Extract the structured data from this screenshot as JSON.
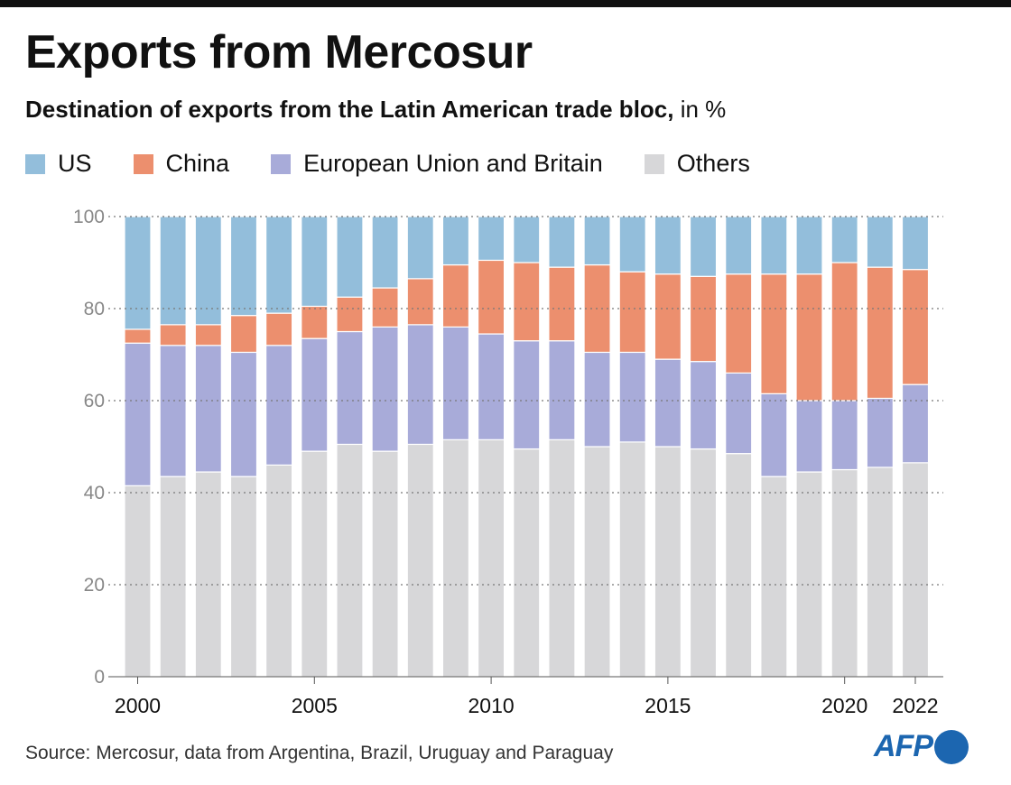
{
  "title": "Exports from Mercosur",
  "subtitle_bold": "Destination of exports from the Latin American trade bloc,",
  "subtitle_rest": " in %",
  "source": "Source: Mercosur, data from Argentina, Brazil, Uruguay and Paraguay",
  "logo_text": "AFP",
  "chart_data": {
    "type": "bar",
    "stacked": true,
    "title": "Exports from Mercosur",
    "subtitle": "Destination of exports from the Latin American trade bloc, in %",
    "ylim": [
      0,
      100
    ],
    "yticks": [
      "0",
      "20",
      "40",
      "60",
      "80",
      "100"
    ],
    "xtick_labels": [
      "2000",
      "2005",
      "2010",
      "2015",
      "2020",
      "2022"
    ],
    "grid": true,
    "legend_position": "top",
    "categories": [
      "2000",
      "2001",
      "2002",
      "2003",
      "2004",
      "2005",
      "2006",
      "2007",
      "2008",
      "2009",
      "2010",
      "2011",
      "2012",
      "2013",
      "2014",
      "2015",
      "2016",
      "2017",
      "2018",
      "2019",
      "2020",
      "2021",
      "2022"
    ],
    "series": [
      {
        "name": "Others",
        "color": "#d7d7d9",
        "values": [
          41.5,
          43.5,
          44.5,
          43.5,
          46,
          49,
          50.5,
          49,
          50.5,
          51.5,
          51.5,
          49.5,
          51.5,
          50,
          51,
          50,
          49.5,
          48.5,
          43.5,
          44.5,
          45,
          45.5,
          46.5
        ]
      },
      {
        "name": "European Union and Britain",
        "color": "#a8abd9",
        "values": [
          31,
          28.5,
          27.5,
          27,
          26,
          24.5,
          24.5,
          27,
          26,
          24.5,
          23,
          23.5,
          21.5,
          20.5,
          19.5,
          19,
          19,
          17.5,
          18,
          15.5,
          15,
          15,
          17
        ]
      },
      {
        "name": "China",
        "color": "#ec8f6e",
        "values": [
          3,
          4.5,
          4.5,
          8,
          7,
          7,
          7.5,
          8.5,
          10,
          13.5,
          16,
          17,
          16,
          19,
          17.5,
          18.5,
          18.5,
          21.5,
          26,
          27.5,
          30,
          28.5,
          25
        ]
      },
      {
        "name": "US",
        "color": "#93bedb",
        "values": [
          24.5,
          23.5,
          23.5,
          21.5,
          21,
          19.5,
          17.5,
          15.5,
          13.5,
          10.5,
          9.5,
          10,
          11,
          10.5,
          12,
          12.5,
          13,
          12.5,
          12.5,
          12.5,
          10,
          11,
          11.5
        ]
      }
    ],
    "legend_order": [
      "US",
      "China",
      "European Union and Britain",
      "Others"
    ]
  }
}
